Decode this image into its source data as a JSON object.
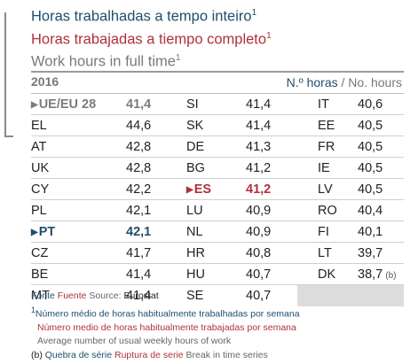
{
  "titles": {
    "pt": "Horas trabalhadas a tempo inteiro",
    "es": "Horas trabajadas a tiempo completo",
    "en": "Work hours in full time",
    "footnote_mark": "1"
  },
  "header": {
    "year": "2016",
    "unit_pt": "N.º horas",
    "unit_sep": " / ",
    "unit_en": "No. hours"
  },
  "table": {
    "rows": [
      [
        {
          "country": "UE/EU 28",
          "value": "41,4"
        },
        {
          "country": "SI",
          "value": "41,4"
        },
        {
          "country": "IT",
          "value": "40,6"
        }
      ],
      [
        {
          "country": "EL",
          "value": "44,6"
        },
        {
          "country": "SK",
          "value": "41,4"
        },
        {
          "country": "EE",
          "value": "40,5"
        }
      ],
      [
        {
          "country": "AT",
          "value": "42,8"
        },
        {
          "country": "DE",
          "value": "41,3"
        },
        {
          "country": "FR",
          "value": "40,5"
        }
      ],
      [
        {
          "country": "UK",
          "value": "42,8"
        },
        {
          "country": "BG",
          "value": "41,2"
        },
        {
          "country": "IE",
          "value": "40,5"
        }
      ],
      [
        {
          "country": "CY",
          "value": "42,2"
        },
        {
          "country": "ES",
          "value": "41,2"
        },
        {
          "country": "LV",
          "value": "40,5"
        }
      ],
      [
        {
          "country": "PL",
          "value": "42,1"
        },
        {
          "country": "LU",
          "value": "40,9"
        },
        {
          "country": "RO",
          "value": "40,4"
        }
      ],
      [
        {
          "country": "PT",
          "value": "42,1"
        },
        {
          "country": "NL",
          "value": "40,9"
        },
        {
          "country": "FI",
          "value": "40,1"
        }
      ],
      [
        {
          "country": "CZ",
          "value": "41,7"
        },
        {
          "country": "HR",
          "value": "40,8"
        },
        {
          "country": "LT",
          "value": "39,7"
        }
      ],
      [
        {
          "country": "BE",
          "value": "41,4"
        },
        {
          "country": "HU",
          "value": "40,7"
        },
        {
          "country": "DK",
          "value": "38,7",
          "note": "(b)"
        }
      ],
      [
        {
          "country": "MT",
          "value": "41,4"
        },
        {
          "country": "SE",
          "value": "40,7"
        }
      ]
    ]
  },
  "footer": {
    "source_pt": "Fonte",
    "source_es": "Fuente",
    "source_en": "Source:",
    "source_name": "Eurostat",
    "note_mark": "1",
    "note_pt": "Número médio de horas habitualmente trabalhadas por semana",
    "note_es": "Número medio de horas habitualmente trabajadas por semana",
    "note_en": "Average number of usual weekly hours of work",
    "break_mark": "(b)",
    "break_pt": "Quebra de série",
    "break_es": "Ruptura de serie",
    "break_en": "Break in time series"
  },
  "colors": {
    "pt_blue": "#1f4e6e",
    "es_red": "#b0313a",
    "en_gray": "#7a7a7a"
  }
}
